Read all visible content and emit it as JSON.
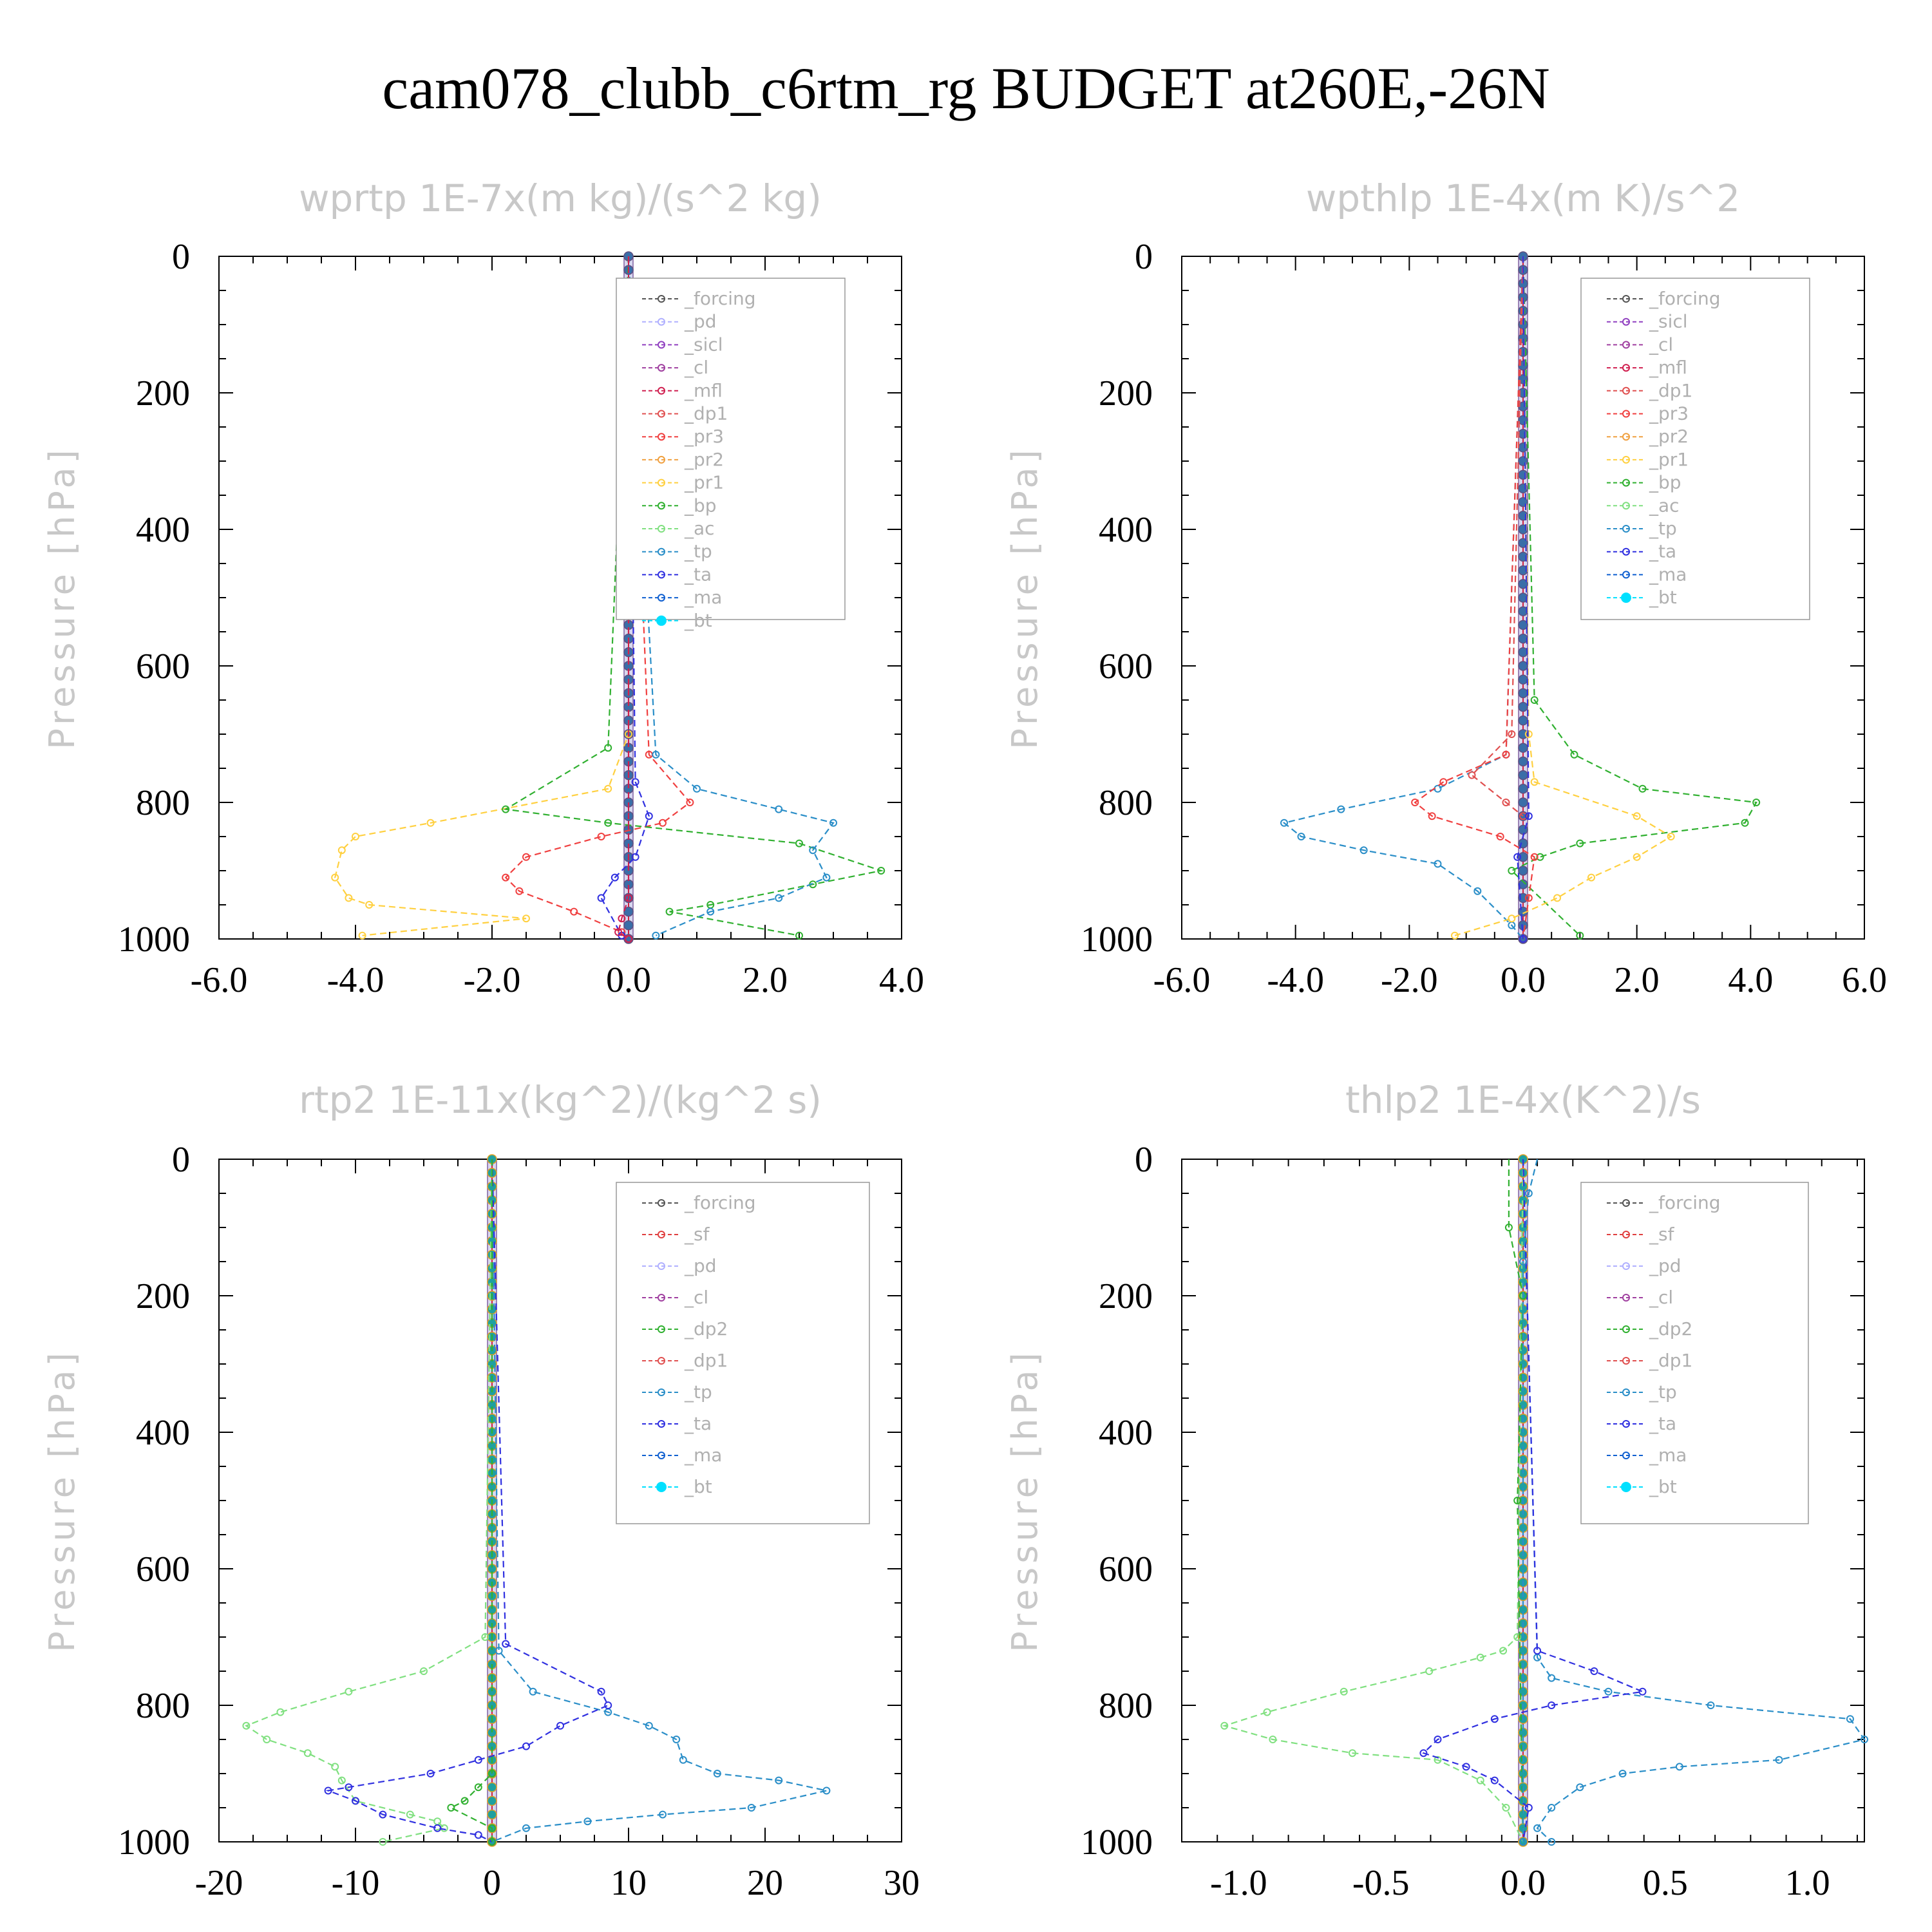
{
  "title": "cam078_clubb_c6rtm_rg  BUDGET at260E,-26N",
  "colors": {
    "forcing": "#555555",
    "pd": "#b0b0ff",
    "sicl": "#9040c0",
    "cl": "#a040a0",
    "mfl": "#d02050",
    "dp1": "#e05050",
    "pr3": "#f04040",
    "pr2": "#f0a040",
    "pr1": "#ffd040",
    "bp": "#30b030",
    "ac": "#80e080",
    "tp": "#2a8ec8",
    "ta": "#3030e0",
    "ma": "#1060d0",
    "bt": "#00e0ff",
    "sf": "#e04040",
    "dp2": "#30b030"
  },
  "chart_data": [
    {
      "type": "line",
      "title": "wprtp  1E-7x(m kg)/(s^2 kg)",
      "ylabel": "Pressure [hPa]",
      "xlim": [
        -6.0,
        4.0
      ],
      "ylim": [
        1000,
        0
      ],
      "xticks": [
        "-6.0",
        "-4.0",
        "-2.0",
        "0.0",
        "2.0",
        "4.0"
      ],
      "yticks": [
        "0",
        "200",
        "400",
        "600",
        "800",
        "1000"
      ],
      "legend": [
        "_forcing",
        "_pd",
        "_sicl",
        "_cl",
        "_mfl",
        "_dp1",
        "_pr3",
        "_pr2",
        "_pr1",
        "_bp",
        "_ac",
        "_tp",
        "_ta",
        "_ma",
        "_bt"
      ],
      "series": [
        {
          "name": "_pr1",
          "color": "pr1",
          "x": [
            0,
            0,
            -0.3,
            -2.9,
            -4.0,
            -4.2,
            -4.3,
            -4.1,
            -3.8,
            -1.5,
            -3.9
          ],
          "y": [
            0,
            700,
            780,
            830,
            850,
            870,
            910,
            940,
            950,
            970,
            995
          ]
        },
        {
          "name": "_pr3",
          "color": "pr3",
          "x": [
            0,
            0.3,
            0.9,
            0.5,
            -0.4,
            -1.5,
            -1.8,
            -1.6,
            -0.8,
            -0.1,
            0
          ],
          "y": [
            0,
            730,
            800,
            830,
            850,
            880,
            910,
            930,
            960,
            990,
            1000
          ]
        },
        {
          "name": "_bp",
          "color": "bp",
          "x": [
            0,
            -0.3,
            -1.8,
            -0.3,
            2.5,
            3.7,
            2.7,
            1.2,
            0.6,
            2.5
          ],
          "y": [
            0,
            720,
            810,
            830,
            860,
            900,
            920,
            950,
            960,
            995
          ]
        },
        {
          "name": "_tp",
          "color": "tp",
          "x": [
            0,
            0.4,
            1.0,
            2.2,
            3.0,
            2.7,
            2.9,
            2.2,
            1.2,
            0.4
          ],
          "y": [
            0,
            730,
            780,
            810,
            830,
            870,
            910,
            940,
            960,
            995
          ]
        },
        {
          "name": "_ta",
          "color": "ta",
          "x": [
            0,
            0.1,
            0.3,
            0.1,
            -0.2,
            -0.4,
            -0.1
          ],
          "y": [
            0,
            770,
            820,
            880,
            910,
            940,
            995
          ]
        },
        {
          "name": "_mfl",
          "color": "mfl",
          "x": [
            0,
            0,
            -0.1,
            -0.15,
            0
          ],
          "y": [
            0,
            940,
            970,
            990,
            1000
          ]
        }
      ]
    },
    {
      "type": "line",
      "title": "wpthlp  1E-4x(m K)/s^2",
      "ylabel": "Pressure [hPa]",
      "xlim": [
        -6.0,
        6.0
      ],
      "ylim": [
        1000,
        0
      ],
      "xticks": [
        "-6.0",
        "-4.0",
        "-2.0",
        "0.0",
        "2.0",
        "4.0",
        "6.0"
      ],
      "yticks": [
        "0",
        "200",
        "400",
        "600",
        "800",
        "1000"
      ],
      "legend": [
        "_forcing",
        "_sicl",
        "_cl",
        "_mfl",
        "_dp1",
        "_pr3",
        "_pr2",
        "_pr1",
        "_bp",
        "_ac",
        "_tp",
        "_ta",
        "_ma",
        "_bt"
      ],
      "series": [
        {
          "name": "_tp",
          "color": "tp",
          "x": [
            0,
            -0.3,
            -1.5,
            -3.2,
            -4.2,
            -3.9,
            -2.8,
            -1.5,
            -0.8,
            -0.2,
            0
          ],
          "y": [
            0,
            730,
            780,
            810,
            830,
            850,
            870,
            890,
            930,
            980,
            1000
          ]
        },
        {
          "name": "_bp",
          "color": "bp",
          "x": [
            0,
            0.2,
            0.9,
            2.1,
            4.1,
            3.9,
            1.0,
            0.3,
            -0.2,
            1.0
          ],
          "y": [
            0,
            650,
            730,
            780,
            800,
            830,
            860,
            880,
            900,
            995
          ]
        },
        {
          "name": "_pr1",
          "color": "pr1",
          "x": [
            0,
            0.1,
            0.2,
            2.0,
            2.6,
            2.0,
            1.2,
            0.6,
            -0.2,
            -1.2
          ],
          "y": [
            0,
            700,
            770,
            820,
            850,
            880,
            910,
            940,
            970,
            995
          ]
        },
        {
          "name": "_pr3",
          "color": "pr3",
          "x": [
            0,
            -0.3,
            -1.4,
            -1.9,
            -1.6,
            -0.4,
            0.2,
            0.1,
            0
          ],
          "y": [
            0,
            730,
            770,
            800,
            820,
            850,
            880,
            940,
            1000
          ]
        },
        {
          "name": "_dp1",
          "color": "dp1",
          "x": [
            0,
            -0.2,
            -0.9,
            -0.3,
            0
          ],
          "y": [
            0,
            700,
            760,
            800,
            820
          ]
        },
        {
          "name": "_ta",
          "color": "ta",
          "x": [
            0,
            0.1,
            -0.1,
            0
          ],
          "y": [
            0,
            820,
            880,
            1000
          ]
        }
      ]
    },
    {
      "type": "line",
      "title": "rtp2  1E-11x(kg^2)/(kg^2 s)",
      "ylabel": "Pressure [hPa]",
      "xlim": [
        -20,
        30
      ],
      "ylim": [
        1000,
        0
      ],
      "xticks": [
        "-20",
        "-10",
        "0",
        "10",
        "20",
        "30"
      ],
      "yticks": [
        "0",
        "200",
        "400",
        "600",
        "800",
        "1000"
      ],
      "legend": [
        "_forcing",
        "_sf",
        "_pd",
        "_cl",
        "_dp2",
        "_dp1",
        "_tp",
        "_ta",
        "_ma",
        "_bt"
      ],
      "series": [
        {
          "name": "_dp1",
          "color": "ac",
          "x": [
            0,
            -0.5,
            -5,
            -10.5,
            -15.5,
            -18,
            -16.5,
            -13.5,
            -11.5,
            -11,
            -10,
            -6,
            -4,
            -3.5,
            -8
          ],
          "y": [
            0,
            700,
            750,
            780,
            810,
            830,
            850,
            870,
            890,
            910,
            940,
            960,
            970,
            980,
            1000
          ]
        },
        {
          "name": "_tp",
          "color": "tp",
          "x": [
            0,
            0.5,
            3,
            8.5,
            11.5,
            13.5,
            14,
            16.5,
            21,
            24.5,
            19,
            12.5,
            7,
            2.5,
            0
          ],
          "y": [
            0,
            720,
            780,
            810,
            830,
            850,
            880,
            900,
            910,
            925,
            950,
            960,
            970,
            980,
            1000
          ]
        },
        {
          "name": "_ta",
          "color": "ta",
          "x": [
            0,
            1,
            8,
            8.5,
            5,
            2.5,
            -1,
            -4.5,
            -10.5,
            -12,
            -10,
            -8,
            -4,
            -1,
            0
          ],
          "y": [
            0,
            710,
            780,
            800,
            830,
            860,
            880,
            900,
            920,
            925,
            940,
            960,
            980,
            990,
            1000
          ]
        },
        {
          "name": "_dp2",
          "color": "dp2",
          "x": [
            0,
            0,
            -1,
            -2,
            -3,
            0,
            0
          ],
          "y": [
            0,
            900,
            920,
            940,
            950,
            980,
            1000
          ]
        }
      ]
    },
    {
      "type": "line",
      "title": "thlp2  1E-4x(K^2)/s",
      "ylabel": "Pressure [hPa]",
      "xlim": [
        -1.2,
        1.2
      ],
      "ylim": [
        1000,
        0
      ],
      "xticks": [
        "-1.0",
        "-0.5",
        "0.0",
        "0.5",
        "1.0"
      ],
      "yticks": [
        "0",
        "200",
        "400",
        "600",
        "800",
        "1000"
      ],
      "legend": [
        "_forcing",
        "_sf",
        "_pd",
        "_cl",
        "_dp2",
        "_dp1",
        "_tp",
        "_ta",
        "_ma",
        "_bt"
      ],
      "series": [
        {
          "name": "_dp1",
          "color": "ac",
          "x": [
            0,
            -0.02,
            -0.07,
            -0.15,
            -0.33,
            -0.63,
            -0.9,
            -1.05,
            -0.88,
            -0.6,
            -0.3,
            -0.15,
            -0.06,
            0
          ],
          "y": [
            0,
            700,
            720,
            730,
            750,
            780,
            810,
            830,
            850,
            870,
            880,
            910,
            950,
            1000
          ]
        },
        {
          "name": "_tp",
          "color": "tp",
          "x": [
            0,
            0.05,
            0.1,
            0.3,
            0.66,
            1.15,
            1.2,
            0.9,
            0.55,
            0.35,
            0.2,
            0.1,
            0.05,
            0.1
          ],
          "y": [
            0,
            730,
            760,
            780,
            800,
            820,
            850,
            880,
            890,
            900,
            920,
            950,
            980,
            1000
          ]
        },
        {
          "name": "_ta",
          "color": "ta",
          "x": [
            0,
            0.05,
            0.25,
            0.42,
            0.1,
            -0.1,
            -0.3,
            -0.35,
            -0.2,
            -0.1,
            0.02,
            0
          ],
          "y": [
            0,
            720,
            750,
            780,
            800,
            820,
            850,
            870,
            890,
            910,
            950,
            1000
          ]
        },
        {
          "name": "_dp2",
          "color": "dp2",
          "x": [
            -0.05,
            -0.05,
            0,
            -0.02,
            0
          ],
          "y": [
            0,
            100,
            200,
            500,
            1000
          ]
        },
        {
          "name": "_tp_top",
          "color": "tp",
          "x": [
            0.05,
            0.02,
            0,
            0
          ],
          "y": [
            0,
            50,
            150,
            1000
          ]
        }
      ]
    }
  ]
}
